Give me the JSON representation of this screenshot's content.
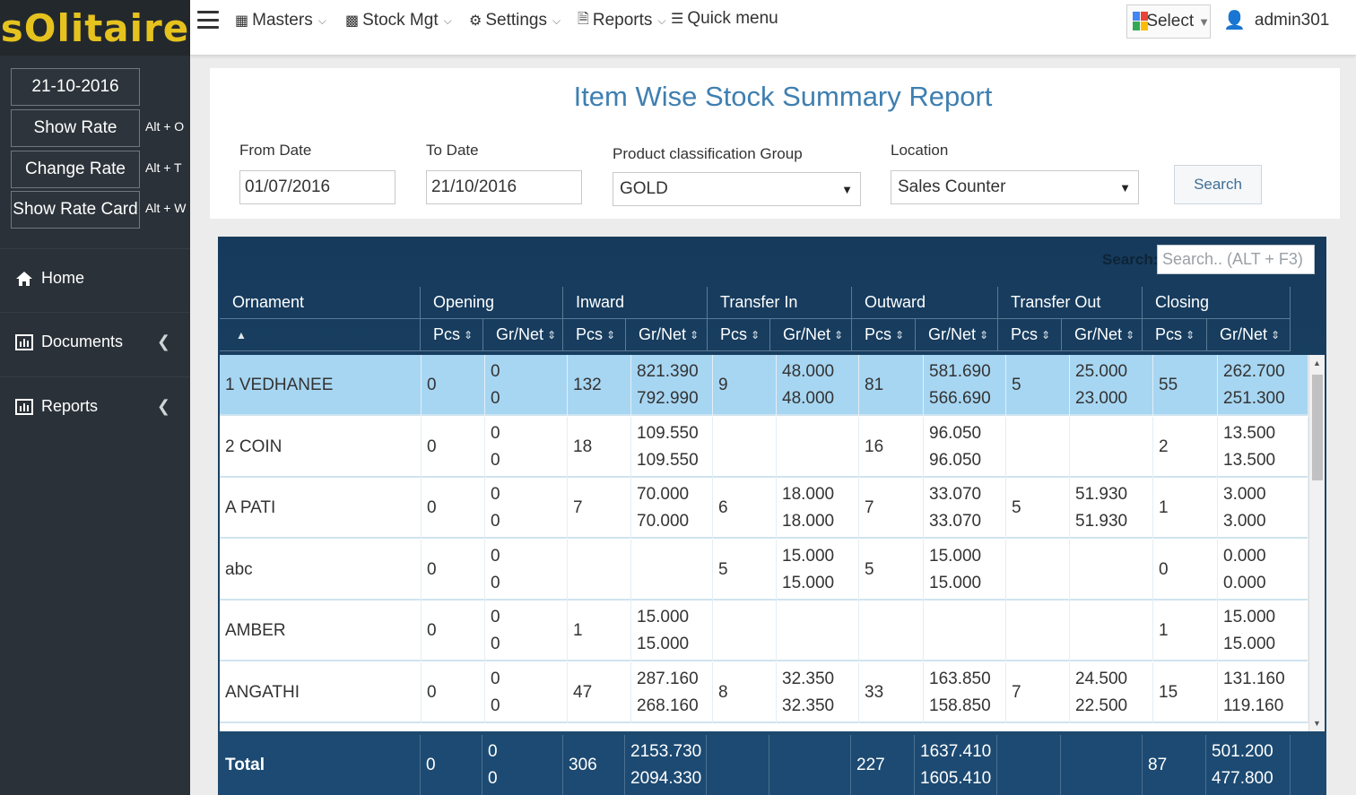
{
  "app": {
    "logo": "sOlitaire"
  },
  "sidebar": {
    "date": "21-10-2016",
    "buttons": [
      {
        "label": "Show Rate",
        "shortcut": "Alt + O"
      },
      {
        "label": "Change Rate",
        "shortcut": "Alt + T"
      },
      {
        "label": "Show Rate Card",
        "shortcut": "Alt + W"
      }
    ],
    "nav": [
      {
        "label": "Home",
        "icon": "home-icon"
      },
      {
        "label": "Documents",
        "icon": "bar-chart-icon"
      },
      {
        "label": "Reports",
        "icon": "bar-chart-icon"
      }
    ]
  },
  "topbar": {
    "menus": [
      "Masters",
      "Stock Mgt",
      "Settings",
      "Reports"
    ],
    "quick_menu": "Quick menu",
    "select_label": "Select",
    "user": "admin301"
  },
  "filter": {
    "title": "Item Wise Stock Summary Report",
    "from_date_label": "From Date",
    "from_date": "01/07/2016",
    "to_date_label": "To Date",
    "to_date": "21/10/2016",
    "group_label": "Product classification Group",
    "group_value": "GOLD",
    "location_label": "Location",
    "location_value": "Sales Counter",
    "search_button": "Search"
  },
  "table": {
    "search_label": "Search:",
    "search_placeholder": "Search.. (ALT + F3)",
    "group_headers": [
      "Ornament",
      "Opening",
      "Inward",
      "Transfer In",
      "Outward",
      "Transfer Out",
      "Closing"
    ],
    "sub_headers": [
      "Pcs",
      "Gr/Net",
      "Pcs",
      "Gr/Net",
      "Pcs",
      "Gr/Net",
      "Pcs",
      "Gr/Net",
      "Pcs",
      "Gr/Net",
      "Pcs",
      "Gr/Net"
    ],
    "rows": [
      {
        "name": "1 VEDHANEE",
        "op_pcs": "0",
        "op_gr": "0",
        "op_net": "0",
        "in_pcs": "132",
        "in_gr": "821.390",
        "in_net": "792.990",
        "ti_pcs": "9",
        "ti_gr": "48.000",
        "ti_net": "48.000",
        "out_pcs": "81",
        "out_gr": "581.690",
        "out_net": "566.690",
        "to_pcs": "5",
        "to_gr": "25.000",
        "to_net": "23.000",
        "cl_pcs": "55",
        "cl_gr": "262.700",
        "cl_net": "251.300"
      },
      {
        "name": "2 COIN",
        "op_pcs": "0",
        "op_gr": "0",
        "op_net": "0",
        "in_pcs": "18",
        "in_gr": "109.550",
        "in_net": "109.550",
        "ti_pcs": "",
        "ti_gr": "",
        "ti_net": "",
        "out_pcs": "16",
        "out_gr": "96.050",
        "out_net": "96.050",
        "to_pcs": "",
        "to_gr": "",
        "to_net": "",
        "cl_pcs": "2",
        "cl_gr": "13.500",
        "cl_net": "13.500"
      },
      {
        "name": "A PATI",
        "op_pcs": "0",
        "op_gr": "0",
        "op_net": "0",
        "in_pcs": "7",
        "in_gr": "70.000",
        "in_net": "70.000",
        "ti_pcs": "6",
        "ti_gr": "18.000",
        "ti_net": "18.000",
        "out_pcs": "7",
        "out_gr": "33.070",
        "out_net": "33.070",
        "to_pcs": "5",
        "to_gr": "51.930",
        "to_net": "51.930",
        "cl_pcs": "1",
        "cl_gr": "3.000",
        "cl_net": "3.000"
      },
      {
        "name": "abc",
        "op_pcs": "0",
        "op_gr": "0",
        "op_net": "0",
        "in_pcs": "",
        "in_gr": "",
        "in_net": "",
        "ti_pcs": "5",
        "ti_gr": "15.000",
        "ti_net": "15.000",
        "out_pcs": "5",
        "out_gr": "15.000",
        "out_net": "15.000",
        "to_pcs": "",
        "to_gr": "",
        "to_net": "",
        "cl_pcs": "0",
        "cl_gr": "0.000",
        "cl_net": "0.000"
      },
      {
        "name": "AMBER",
        "op_pcs": "0",
        "op_gr": "0",
        "op_net": "0",
        "in_pcs": "1",
        "in_gr": "15.000",
        "in_net": "15.000",
        "ti_pcs": "",
        "ti_gr": "",
        "ti_net": "",
        "out_pcs": "",
        "out_gr": "",
        "out_net": "",
        "to_pcs": "",
        "to_gr": "",
        "to_net": "",
        "cl_pcs": "1",
        "cl_gr": "15.000",
        "cl_net": "15.000"
      },
      {
        "name": "ANGATHI",
        "op_pcs": "0",
        "op_gr": "0",
        "op_net": "0",
        "in_pcs": "47",
        "in_gr": "287.160",
        "in_net": "268.160",
        "ti_pcs": "8",
        "ti_gr": "32.350",
        "ti_net": "32.350",
        "out_pcs": "33",
        "out_gr": "163.850",
        "out_net": "158.850",
        "to_pcs": "7",
        "to_gr": "24.500",
        "to_net": "22.500",
        "cl_pcs": "15",
        "cl_gr": "131.160",
        "cl_net": "119.160"
      }
    ],
    "total": {
      "label": "Total",
      "op_pcs": "0",
      "op_gr": "0",
      "op_net": "0",
      "in_pcs": "306",
      "in_gr": "2153.730",
      "in_net": "2094.330",
      "out_pcs": "227",
      "out_gr": "1637.410",
      "out_net": "1605.410",
      "cl_pcs": "87",
      "cl_gr": "501.200",
      "cl_net": "477.800"
    }
  }
}
